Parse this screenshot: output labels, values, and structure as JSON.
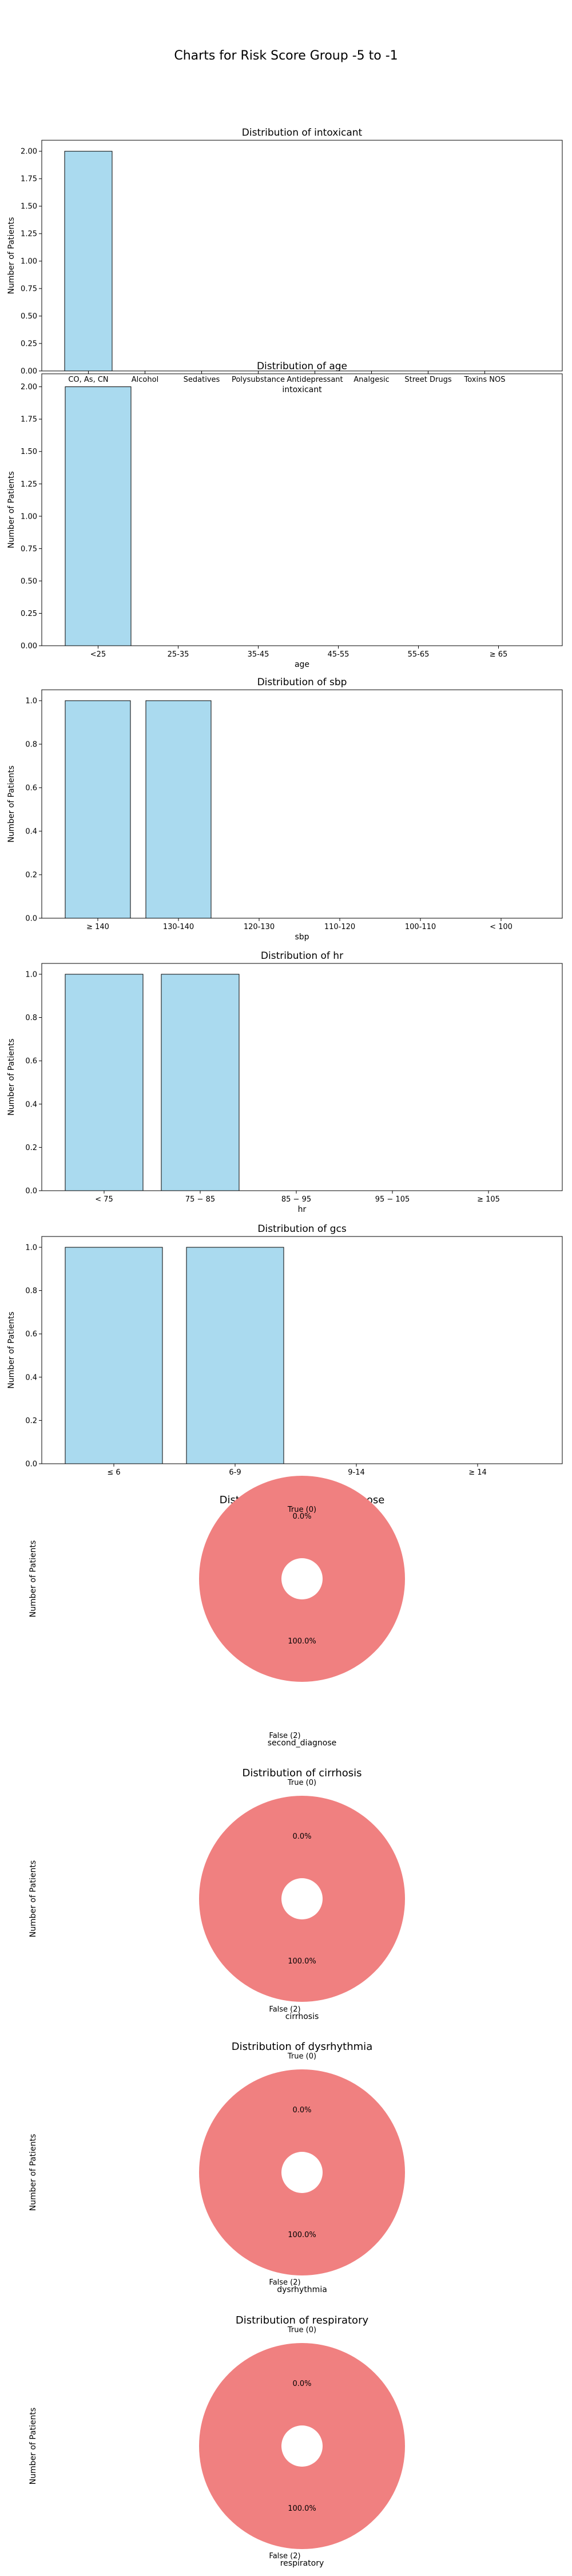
{
  "title": "Charts for Risk Score Group -5 to -1",
  "chart_data": [
    {
      "type": "bar",
      "title": "Distribution of intoxicant",
      "xlabel": "intoxicant",
      "ylabel": "Number of Patients",
      "categories": [
        "CO, As, CN",
        "Alcohol",
        "Sedatives",
        "Polysubstance",
        "Antidepressant",
        "Analgesic",
        "Street Drugs",
        "Toxins NOS"
      ],
      "values": [
        2,
        0,
        0,
        0,
        0,
        0,
        0,
        0
      ],
      "ylim": [
        0,
        2.1
      ],
      "yticks": [
        "0.00",
        "0.25",
        "0.50",
        "0.75",
        "1.00",
        "1.25",
        "1.50",
        "1.75",
        "2.00"
      ],
      "color": "#aadaef"
    },
    {
      "type": "bar",
      "title": "Distribution of age",
      "xlabel": "age",
      "ylabel": "Number of Patients",
      "categories": [
        "<25",
        "25-35",
        "35-45",
        "45-55",
        "55-65",
        "≥ 65"
      ],
      "values": [
        2,
        0,
        0,
        0,
        0,
        0
      ],
      "ylim": [
        0,
        2.1
      ],
      "yticks": [
        "0.00",
        "0.25",
        "0.50",
        "0.75",
        "1.00",
        "1.25",
        "1.50",
        "1.75",
        "2.00"
      ],
      "color": "#aadaef"
    },
    {
      "type": "bar",
      "title": "Distribution of sbp",
      "xlabel": "sbp",
      "ylabel": "Number of Patients",
      "categories": [
        "≥ 140",
        "130-140",
        "120-130",
        "110-120",
        "100-110",
        "< 100"
      ],
      "values": [
        1,
        1,
        0,
        0,
        0,
        0
      ],
      "ylim": [
        0,
        1.05
      ],
      "yticks": [
        "0.0",
        "0.2",
        "0.4",
        "0.6",
        "0.8",
        "1.0"
      ],
      "color": "#aadaef"
    },
    {
      "type": "bar",
      "title": "Distribution of hr",
      "xlabel": "hr",
      "ylabel": "Number of Patients",
      "categories": [
        "< 75",
        "75 − 85",
        "85 − 95",
        "95 − 105",
        "≥ 105"
      ],
      "values": [
        1,
        1,
        0,
        0,
        0
      ],
      "ylim": [
        0,
        1.05
      ],
      "yticks": [
        "0.0",
        "0.2",
        "0.4",
        "0.6",
        "0.8",
        "1.0"
      ],
      "color": "#aadaef"
    },
    {
      "type": "bar",
      "title": "Distribution of gcs",
      "xlabel": "gcs",
      "ylabel": "Number of Patients",
      "categories": [
        "≤ 6",
        "6-9",
        "9-14",
        "≥ 14"
      ],
      "values": [
        1,
        1,
        0,
        0
      ],
      "ylim": [
        0,
        1.05
      ],
      "yticks": [
        "0.0",
        "0.2",
        "0.4",
        "0.6",
        "0.8",
        "1.0"
      ],
      "color": "#aadaef"
    },
    {
      "type": "pie",
      "title": "Distribution of second_diagnose",
      "xlabel": "second_diagnose",
      "ylabel": "Number of Patients",
      "slices": [
        {
          "label": "False (2)",
          "value": 2,
          "pct": "100.0%",
          "color": "#f08080"
        },
        {
          "label": "True (0)",
          "value": 0,
          "pct": "0.0%",
          "color": "#f08080"
        }
      ]
    },
    {
      "type": "pie",
      "title": "Distribution of cirrhosis",
      "xlabel": "cirrhosis",
      "ylabel": "Number of Patients",
      "slices": [
        {
          "label": "False (2)",
          "value": 2,
          "pct": "100.0%",
          "color": "#f08080"
        },
        {
          "label": "True (0)",
          "value": 0,
          "pct": "0.0%",
          "color": "#f08080"
        }
      ]
    },
    {
      "type": "pie",
      "title": "Distribution of dysrhythmia",
      "xlabel": "dysrhythmia",
      "ylabel": "Number of Patients",
      "slices": [
        {
          "label": "False (2)",
          "value": 2,
          "pct": "100.0%",
          "color": "#f08080"
        },
        {
          "label": "True (0)",
          "value": 0,
          "pct": "0.0%",
          "color": "#f08080"
        }
      ]
    },
    {
      "type": "pie",
      "title": "Distribution of respiratory",
      "xlabel": "respiratory",
      "ylabel": "Number of Patients",
      "slices": [
        {
          "label": "False (2)",
          "value": 2,
          "pct": "100.0%",
          "color": "#f08080"
        },
        {
          "label": "True (0)",
          "value": 0,
          "pct": "0.0%",
          "color": "#f08080"
        }
      ]
    }
  ]
}
